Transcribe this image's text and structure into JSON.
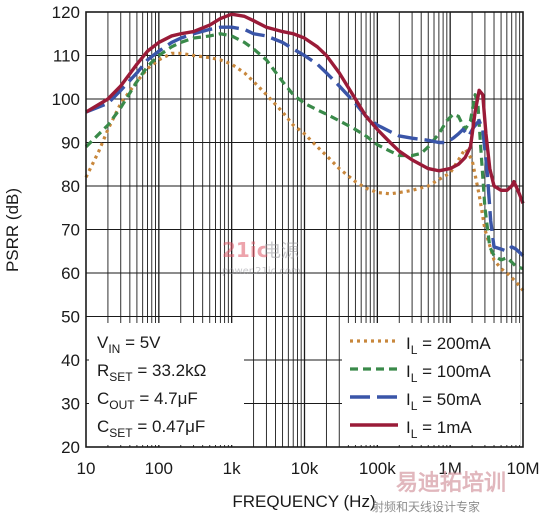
{
  "chart_data": {
    "type": "line",
    "title": "",
    "xlabel": "FREQUENCY (Hz)",
    "ylabel": "PSRR (dB)",
    "xscale": "log",
    "xlim": [
      10,
      10000000
    ],
    "ylim": [
      20,
      120
    ],
    "x_ticks": [
      {
        "value": 10,
        "label": "10"
      },
      {
        "value": 100,
        "label": "100"
      },
      {
        "value": 1000,
        "label": "1k"
      },
      {
        "value": 10000,
        "label": "10k"
      },
      {
        "value": 100000,
        "label": "100k"
      },
      {
        "value": 1000000,
        "label": "1M"
      },
      {
        "value": 10000000,
        "label": "10M"
      }
    ],
    "y_ticks": [
      20,
      30,
      40,
      50,
      60,
      70,
      80,
      90,
      100,
      110,
      120
    ],
    "grid": true,
    "legend_position": "bottom-right",
    "conditions": [
      {
        "main": "V",
        "sub": "IN",
        "rest": " = 5V"
      },
      {
        "main": "R",
        "sub": "SET",
        "rest": " = 33.2kΩ"
      },
      {
        "main": "C",
        "sub": "OUT",
        "rest": " = 4.7μF"
      },
      {
        "main": "C",
        "sub": "SET",
        "rest": " = 0.47μF"
      }
    ],
    "series": [
      {
        "legend_main": "I",
        "legend_sub": "L",
        "legend_rest": " = 200mA",
        "color": "#c8873c",
        "dash": "3,4",
        "width": 3.2,
        "points": [
          [
            10,
            82
          ],
          [
            15,
            88
          ],
          [
            20,
            93
          ],
          [
            30,
            99
          ],
          [
            50,
            104
          ],
          [
            70,
            107
          ],
          [
            100,
            109
          ],
          [
            150,
            110.5
          ],
          [
            200,
            110.5
          ],
          [
            300,
            110
          ],
          [
            500,
            109.5
          ],
          [
            700,
            109
          ],
          [
            1000,
            108
          ],
          [
            1500,
            106
          ],
          [
            2000,
            104
          ],
          [
            3000,
            101
          ],
          [
            5000,
            97
          ],
          [
            7000,
            94
          ],
          [
            10000,
            92
          ],
          [
            15000,
            89
          ],
          [
            20000,
            87
          ],
          [
            30000,
            84
          ],
          [
            50000,
            81
          ],
          [
            70000,
            79.5
          ],
          [
            100000,
            78.5
          ],
          [
            150000,
            78.2
          ],
          [
            200000,
            78.5
          ],
          [
            300000,
            79
          ],
          [
            500000,
            80
          ],
          [
            700000,
            81.5
          ],
          [
            1000000,
            83
          ],
          [
            1300000,
            86
          ],
          [
            1600000,
            88.5
          ],
          [
            2000000,
            86
          ],
          [
            2500000,
            78
          ],
          [
            3000000,
            70
          ],
          [
            4000000,
            63
          ],
          [
            5000000,
            61
          ],
          [
            6000000,
            60
          ],
          [
            8000000,
            58
          ],
          [
            10000000,
            56
          ]
        ]
      },
      {
        "legend_main": "I",
        "legend_sub": "L",
        "legend_rest": " = 100mA",
        "color": "#3a8a4a",
        "dash": "8,5",
        "width": 3.2,
        "points": [
          [
            10,
            89
          ],
          [
            20,
            94
          ],
          [
            30,
            98
          ],
          [
            50,
            104
          ],
          [
            70,
            107.5
          ],
          [
            100,
            110
          ],
          [
            150,
            112
          ],
          [
            200,
            113
          ],
          [
            300,
            114
          ],
          [
            500,
            114.5
          ],
          [
            700,
            115
          ],
          [
            1000,
            114.5
          ],
          [
            1500,
            113
          ],
          [
            2000,
            111.5
          ],
          [
            3000,
            109
          ],
          [
            5000,
            104
          ],
          [
            7000,
            101
          ],
          [
            10000,
            99
          ],
          [
            15000,
            97.5
          ],
          [
            20000,
            96.5
          ],
          [
            30000,
            95
          ],
          [
            50000,
            93
          ],
          [
            70000,
            91.5
          ],
          [
            100000,
            89.5
          ],
          [
            150000,
            88
          ],
          [
            200000,
            87
          ],
          [
            300000,
            87
          ],
          [
            400000,
            87.5
          ],
          [
            500000,
            89
          ],
          [
            700000,
            92
          ],
          [
            900000,
            95
          ],
          [
            1100000,
            96.5
          ],
          [
            1300000,
            96
          ],
          [
            1600000,
            93
          ],
          [
            1900000,
            95
          ],
          [
            2200000,
            101
          ],
          [
            2400000,
            99
          ],
          [
            2600000,
            90
          ],
          [
            3000000,
            75
          ],
          [
            3500000,
            66
          ],
          [
            4000000,
            64
          ],
          [
            5000000,
            63
          ],
          [
            6000000,
            63.5
          ],
          [
            7000000,
            62.5
          ],
          [
            8000000,
            61.5
          ],
          [
            10000000,
            61
          ]
        ]
      },
      {
        "legend_main": "I",
        "legend_sub": "L",
        "legend_rest": " = 50mA",
        "color": "#3a55a8",
        "dash": "20,7",
        "width": 3.4,
        "points": [
          [
            10,
            97
          ],
          [
            20,
            99
          ],
          [
            30,
            102
          ],
          [
            50,
            106
          ],
          [
            70,
            109
          ],
          [
            100,
            111
          ],
          [
            150,
            113
          ],
          [
            200,
            114
          ],
          [
            300,
            115
          ],
          [
            500,
            116
          ],
          [
            700,
            116.5
          ],
          [
            1000,
            116.5
          ],
          [
            1500,
            116
          ],
          [
            2000,
            115
          ],
          [
            3000,
            114.5
          ],
          [
            5000,
            113
          ],
          [
            7000,
            111.5
          ],
          [
            10000,
            110
          ],
          [
            15000,
            108
          ],
          [
            20000,
            106
          ],
          [
            30000,
            103
          ],
          [
            50000,
            99
          ],
          [
            70000,
            96
          ],
          [
            100000,
            94
          ],
          [
            150000,
            92.5
          ],
          [
            200000,
            91.5
          ],
          [
            300000,
            91
          ],
          [
            500000,
            90.5
          ],
          [
            700000,
            90
          ],
          [
            900000,
            90
          ],
          [
            1100000,
            91
          ],
          [
            1300000,
            92
          ],
          [
            1500000,
            93
          ],
          [
            1800000,
            91.5
          ],
          [
            2100000,
            93.5
          ],
          [
            2500000,
            95
          ],
          [
            2800000,
            93
          ],
          [
            3200000,
            84
          ],
          [
            3600000,
            72
          ],
          [
            4000000,
            66
          ],
          [
            5000000,
            65.5
          ],
          [
            6000000,
            65
          ],
          [
            7000000,
            66
          ],
          [
            8000000,
            65.5
          ],
          [
            10000000,
            64
          ]
        ]
      },
      {
        "legend_main": "I",
        "legend_sub": "L",
        "legend_rest": " = 1mA",
        "color": "#9a1b38",
        "dash": "",
        "width": 3.4,
        "points": [
          [
            10,
            97
          ],
          [
            20,
            100
          ],
          [
            30,
            103
          ],
          [
            50,
            108
          ],
          [
            70,
            111
          ],
          [
            100,
            113
          ],
          [
            150,
            114.5
          ],
          [
            200,
            115
          ],
          [
            300,
            115.5
          ],
          [
            500,
            117
          ],
          [
            700,
            118.5
          ],
          [
            1000,
            119.5
          ],
          [
            1500,
            119
          ],
          [
            2000,
            118
          ],
          [
            3000,
            116.5
          ],
          [
            5000,
            115.5
          ],
          [
            7000,
            115
          ],
          [
            10000,
            114
          ],
          [
            15000,
            112
          ],
          [
            20000,
            110
          ],
          [
            30000,
            106
          ],
          [
            50000,
            100
          ],
          [
            70000,
            96
          ],
          [
            100000,
            93
          ],
          [
            150000,
            90
          ],
          [
            200000,
            88
          ],
          [
            300000,
            86
          ],
          [
            500000,
            84
          ],
          [
            700000,
            83.5
          ],
          [
            1000000,
            84
          ],
          [
            1300000,
            85
          ],
          [
            1600000,
            86.5
          ],
          [
            1900000,
            89
          ],
          [
            2200000,
            97
          ],
          [
            2500000,
            102
          ],
          [
            2800000,
            101
          ],
          [
            3100000,
            92
          ],
          [
            3500000,
            84
          ],
          [
            4000000,
            80
          ],
          [
            5000000,
            79
          ],
          [
            6000000,
            79
          ],
          [
            7000000,
            80
          ],
          [
            7500000,
            81
          ],
          [
            8000000,
            80
          ],
          [
            9000000,
            78
          ],
          [
            10000000,
            76
          ]
        ]
      }
    ]
  },
  "watermark": {
    "brand_number": "21ic",
    "brand_cn": "电源",
    "url": "power.21ic.com",
    "corner_logo": "易迪拓培训",
    "corner_tagline": "射频和天线设计专家"
  }
}
